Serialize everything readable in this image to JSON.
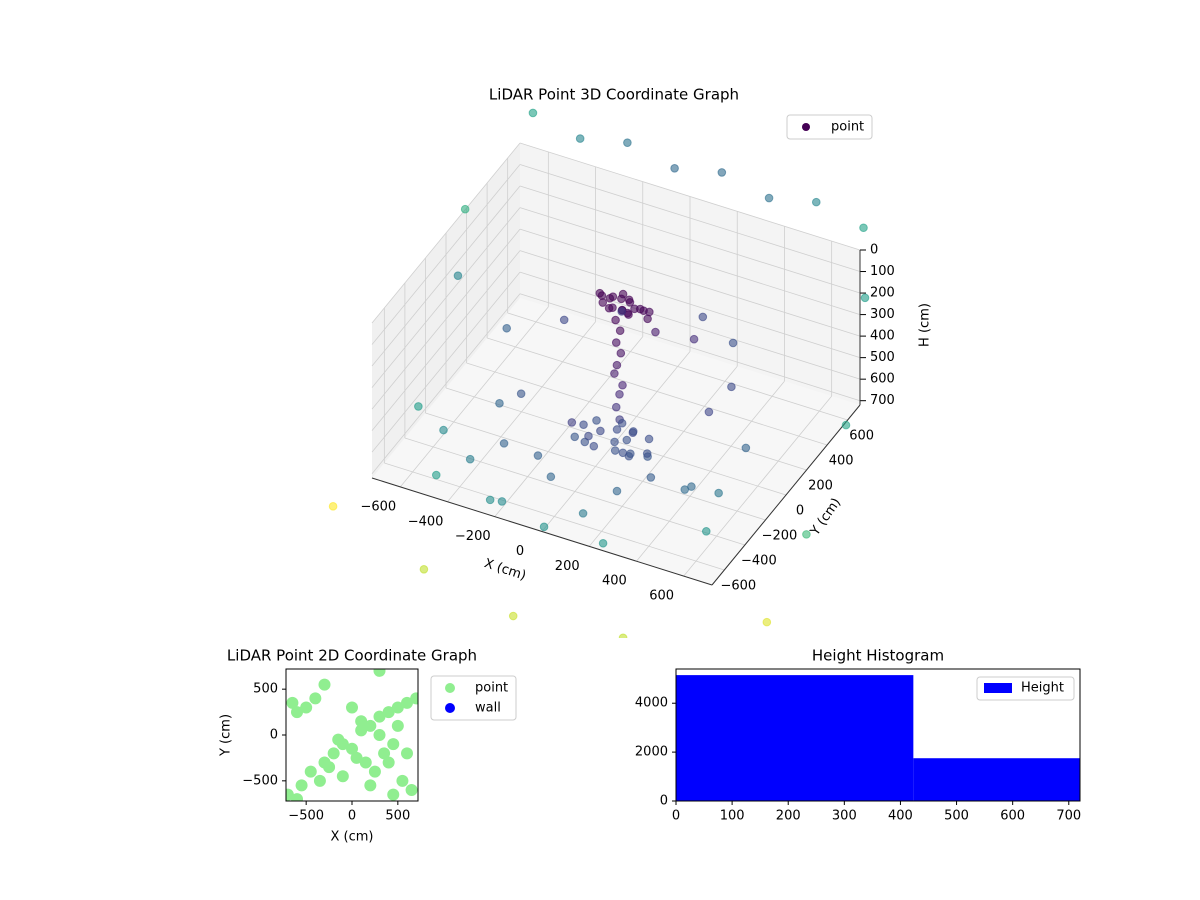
{
  "chart_data": [
    {
      "type": "scatter3d",
      "title": "LiDAR Point 3D Coordinate Graph",
      "xlabel": "X (cm)",
      "ylabel": "Y (cm)",
      "zlabel": "H (cm)",
      "series": [
        {
          "name": "point",
          "color": "#440154",
          "x": [
            -60,
            -30,
            0,
            20,
            40,
            60,
            80,
            100,
            130,
            160,
            -40,
            10,
            30,
            50,
            70,
            90,
            120,
            150,
            0,
            45,
            20,
            35,
            25,
            40,
            30,
            15,
            45,
            30,
            25,
            35,
            -120,
            -80,
            -40,
            0,
            40,
            80,
            120,
            160,
            -100,
            -20,
            60,
            100,
            140,
            -60,
            20,
            -140,
            180,
            0,
            50,
            90,
            -500,
            -400,
            -300,
            -200,
            -100,
            100,
            200,
            300,
            400,
            500,
            -550,
            -350,
            -150,
            150,
            350,
            550,
            -450,
            -250,
            250,
            450,
            -600,
            -200,
            0,
            200,
            600,
            -380,
            380,
            -80,
            80,
            300,
            -700,
            -500,
            -300,
            -100,
            100,
            300,
            500,
            700,
            -800,
            -750,
            800,
            850,
            -900,
            900,
            -850,
            600,
            -400,
            400,
            0,
            750
          ],
          "y": [
            -20,
            -60,
            -30,
            -80,
            -40,
            -10,
            -70,
            -50,
            -30,
            -60,
            -45,
            -90,
            0,
            -55,
            -25,
            -85,
            -40,
            -20,
            -60,
            -43,
            -50,
            -40,
            -55,
            -45,
            -60,
            -50,
            -40,
            -35,
            -55,
            -45,
            -40,
            -120,
            -60,
            10,
            -100,
            -20,
            -150,
            -60,
            40,
            -170,
            30,
            -90,
            0,
            -130,
            -60,
            -80,
            -110,
            60,
            -10,
            -140,
            -600,
            -500,
            -400,
            -300,
            -200,
            -550,
            -450,
            -350,
            -250,
            -150,
            200,
            300,
            400,
            500,
            100,
            0,
            -100,
            -650,
            -700,
            -300,
            -300,
            -650,
            -700,
            300,
            -500,
            -50,
            250,
            -450,
            200,
            450,
            800,
            800,
            800,
            800,
            800,
            800,
            800,
            800,
            300,
            -200,
            400,
            -100,
            600,
            -600,
            -800,
            -900,
            -950,
            -850,
            -1000,
            700
          ],
          "z": [
            40,
            50,
            30,
            45,
            20,
            35,
            55,
            40,
            50,
            60,
            30,
            45,
            25,
            60,
            35,
            50,
            40,
            55,
            20,
            70,
            120,
            170,
            220,
            270,
            320,
            370,
            420,
            470,
            520,
            580,
            660,
            680,
            650,
            670,
            690,
            640,
            660,
            700,
            680,
            650,
            670,
            690,
            660,
            640,
            680,
            700,
            650,
            670,
            690,
            660,
            700,
            650,
            600,
            680,
            550,
            700,
            620,
            580,
            660,
            700,
            500,
            450,
            400,
            380,
            520,
            560,
            640,
            700,
            700,
            600,
            700,
            690,
            710,
            350,
            640,
            600,
            480,
            650,
            300,
            420,
            -100,
            -50,
            -100,
            -50,
            -100,
            -50,
            -100,
            -50,
            400,
            700,
            600,
            800,
            300,
            900,
            850,
            950,
            900,
            1000,
            950,
            200
          ]
        }
      ],
      "colormap": "viridis",
      "xlim": [
        -720,
        720
      ],
      "ylim": [
        -720,
        720
      ],
      "zlim": [
        0,
        720
      ],
      "zinvert": true,
      "xticks": [
        {
          "value": -600,
          "label": "−600"
        },
        {
          "value": -400,
          "label": "−400"
        },
        {
          "value": -200,
          "label": "−200"
        },
        0,
        200,
        400,
        600
      ],
      "yticks": [
        {
          "value": -600,
          "label": "−600"
        },
        {
          "value": -400,
          "label": "−400"
        },
        {
          "value": -200,
          "label": "−200"
        },
        0,
        200,
        400,
        600
      ],
      "zticks": [
        0,
        100,
        200,
        300,
        400,
        500,
        600,
        700
      ],
      "grid": true,
      "legend": "upper right"
    },
    {
      "type": "scatter",
      "title": "LiDAR Point 2D Coordinate Graph",
      "xlabel": "X (cm)",
      "ylabel": "Y (cm)",
      "series": [
        {
          "name": "point",
          "color": "#90ee90",
          "x": [
            -650,
            -600,
            -550,
            -450,
            -350,
            -300,
            -250,
            -200,
            -100,
            0,
            100,
            200,
            300,
            400,
            500,
            600,
            700,
            -700,
            -500,
            -400,
            -300,
            -150,
            50,
            150,
            250,
            350,
            450,
            550,
            650,
            -600,
            0,
            100,
            200,
            300,
            400,
            500,
            600,
            -100,
            300,
            450
          ],
          "y": [
            350,
            250,
            -550,
            -400,
            -500,
            -300,
            -350,
            -200,
            -100,
            -150,
            50,
            100,
            200,
            250,
            300,
            350,
            400,
            -650,
            300,
            400,
            550,
            -50,
            -250,
            -300,
            -400,
            -200,
            -100,
            -500,
            -600,
            -700,
            300,
            150,
            -550,
            0,
            -300,
            100,
            -200,
            -450,
            700,
            -650
          ]
        },
        {
          "name": "wall",
          "color": "#0000ff",
          "x": [],
          "y": []
        }
      ],
      "xlim": [
        -720,
        720
      ],
      "ylim": [
        -720,
        720
      ],
      "xticks": [
        {
          "value": -500,
          "label": "−500"
        },
        0,
        500
      ],
      "yticks": [
        {
          "value": -500,
          "label": "−500"
        },
        0,
        500
      ],
      "legend": "outside right"
    },
    {
      "type": "histogram",
      "title": "Height Histogram",
      "bins": [
        0,
        423,
        720
      ],
      "counts": [
        5150,
        1750
      ],
      "series_name": "Height",
      "color": "#0000ff",
      "xlim": [
        0,
        720
      ],
      "ylim": [
        0,
        5400
      ],
      "xticks": [
        0,
        100,
        200,
        300,
        400,
        500,
        600,
        700
      ],
      "yticks": [
        0,
        2000,
        4000
      ],
      "legend": "upper right"
    }
  ]
}
